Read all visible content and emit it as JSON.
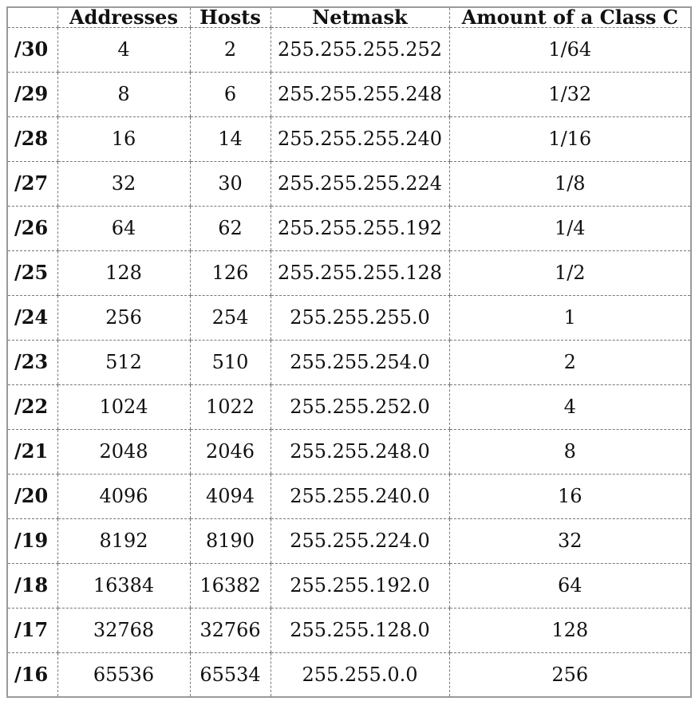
{
  "table": {
    "headers": [
      "",
      "Addresses",
      "Hosts",
      "Netmask",
      "Amount of a Class C"
    ],
    "rows": [
      {
        "prefix": "/30",
        "addresses": "4",
        "hosts": "2",
        "netmask": "255.255.255.252",
        "class_c": "1/64"
      },
      {
        "prefix": "/29",
        "addresses": "8",
        "hosts": "6",
        "netmask": "255.255.255.248",
        "class_c": "1/32"
      },
      {
        "prefix": "/28",
        "addresses": "16",
        "hosts": "14",
        "netmask": "255.255.255.240",
        "class_c": "1/16"
      },
      {
        "prefix": "/27",
        "addresses": "32",
        "hosts": "30",
        "netmask": "255.255.255.224",
        "class_c": "1/8"
      },
      {
        "prefix": "/26",
        "addresses": "64",
        "hosts": "62",
        "netmask": "255.255.255.192",
        "class_c": "1/4"
      },
      {
        "prefix": "/25",
        "addresses": "128",
        "hosts": "126",
        "netmask": "255.255.255.128",
        "class_c": "1/2"
      },
      {
        "prefix": "/24",
        "addresses": "256",
        "hosts": "254",
        "netmask": "255.255.255.0",
        "class_c": "1"
      },
      {
        "prefix": "/23",
        "addresses": "512",
        "hosts": "510",
        "netmask": "255.255.254.0",
        "class_c": "2"
      },
      {
        "prefix": "/22",
        "addresses": "1024",
        "hosts": "1022",
        "netmask": "255.255.252.0",
        "class_c": "4"
      },
      {
        "prefix": "/21",
        "addresses": "2048",
        "hosts": "2046",
        "netmask": "255.255.248.0",
        "class_c": "8"
      },
      {
        "prefix": "/20",
        "addresses": "4096",
        "hosts": "4094",
        "netmask": "255.255.240.0",
        "class_c": "16"
      },
      {
        "prefix": "/19",
        "addresses": "8192",
        "hosts": "8190",
        "netmask": "255.255.224.0",
        "class_c": "32"
      },
      {
        "prefix": "/18",
        "addresses": "16384",
        "hosts": "16382",
        "netmask": "255.255.192.0",
        "class_c": "64"
      },
      {
        "prefix": "/17",
        "addresses": "32768",
        "hosts": "32766",
        "netmask": "255.255.128.0",
        "class_c": "128"
      },
      {
        "prefix": "/16",
        "addresses": "65536",
        "hosts": "65534",
        "netmask": "255.255.0.0",
        "class_c": "256"
      }
    ]
  }
}
